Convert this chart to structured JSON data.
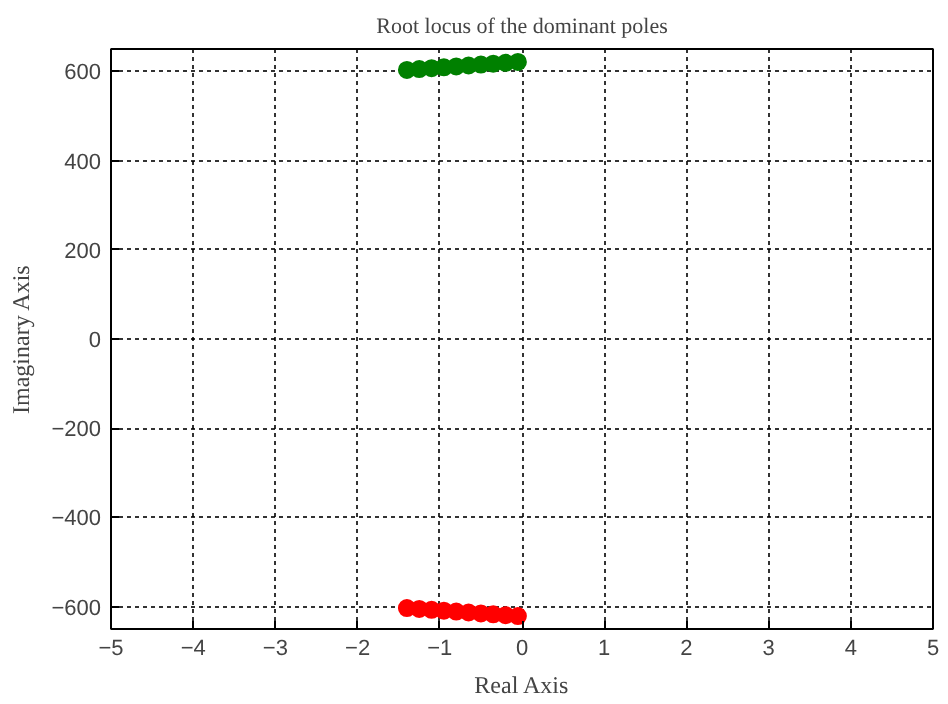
{
  "chart_data": {
    "type": "scatter",
    "title": "Root locus of the dominant poles",
    "xlabel": "Real Axis",
    "ylabel": "Imaginary Axis",
    "xlim": [
      -5,
      5
    ],
    "ylim": [
      -650,
      650
    ],
    "xticks": [
      -5,
      -4,
      -3,
      -2,
      -1,
      0,
      1,
      2,
      3,
      4,
      5
    ],
    "yticks": [
      -600,
      -400,
      -200,
      0,
      200,
      400,
      600
    ],
    "grid": true,
    "marker": "circle",
    "series": [
      {
        "color": "#008000",
        "x": [
          -1.4,
          -1.25,
          -1.1,
          -0.95,
          -0.8,
          -0.65,
          -0.5,
          -0.35,
          -0.2,
          -0.05
        ],
        "values": [
          603,
          605,
          607,
          609,
          611,
          613,
          615,
          617,
          619,
          621
        ]
      },
      {
        "color": "#ff0000",
        "x": [
          -1.4,
          -1.25,
          -1.1,
          -0.95,
          -0.8,
          -0.65,
          -0.5,
          -0.35,
          -0.2,
          -0.05
        ],
        "values": [
          -603,
          -605,
          -607,
          -609,
          -611,
          -613,
          -615,
          -617,
          -619,
          -621
        ]
      }
    ]
  }
}
